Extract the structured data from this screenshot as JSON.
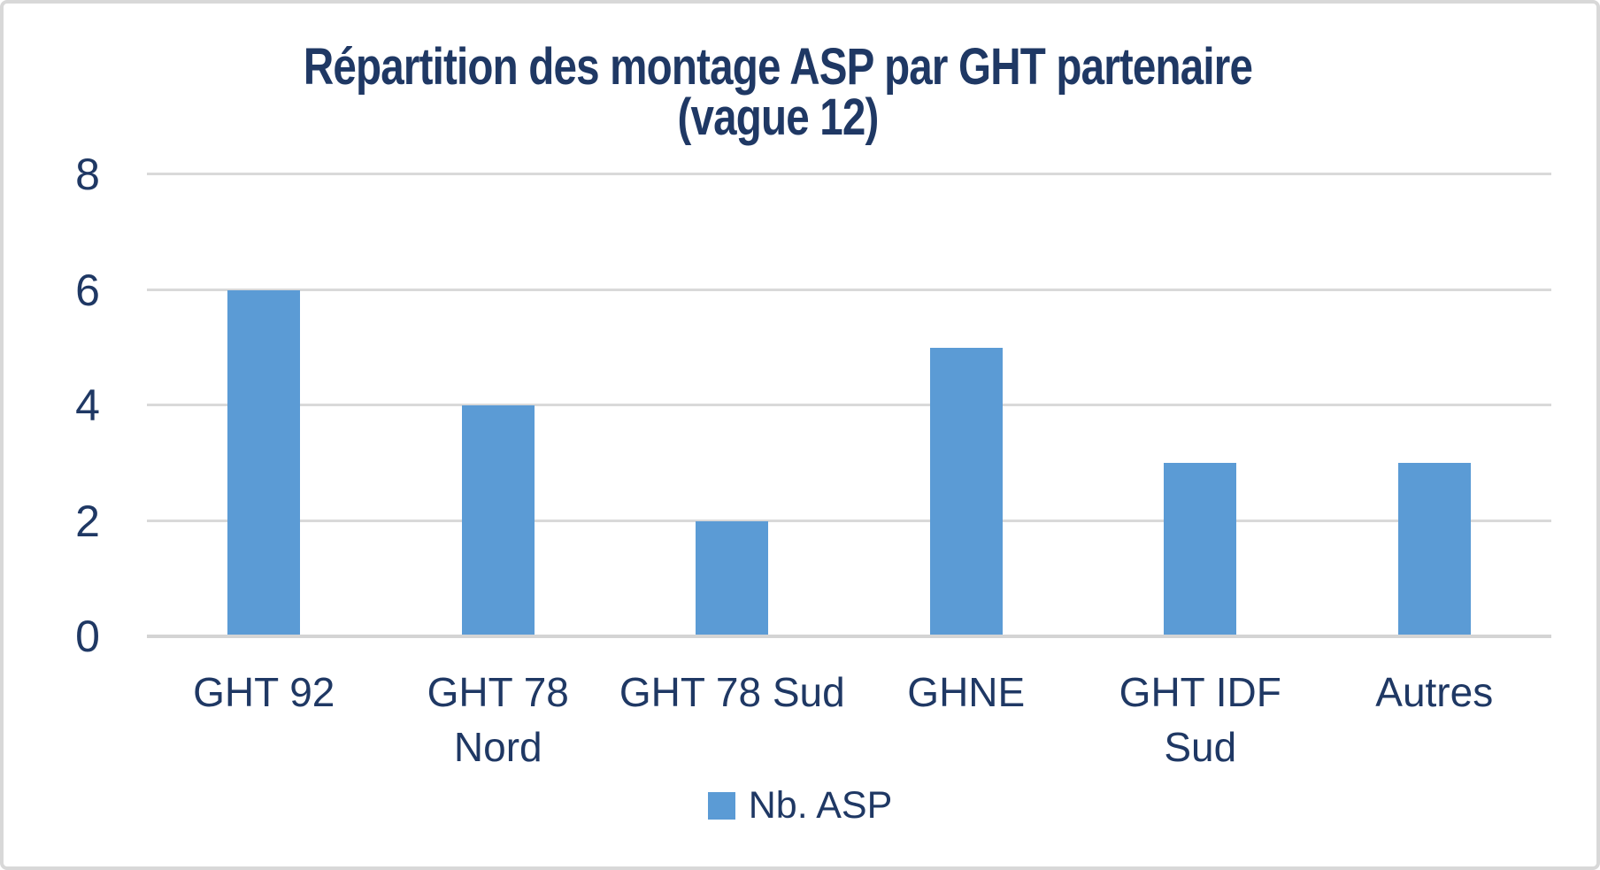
{
  "chart_data": {
    "type": "bar",
    "title": "Répartition des montage ASP par GHT partenaire (vague 12)",
    "title_lines": [
      "Répartition des montage ASP par GHT partenaire",
      "(vague 12)"
    ],
    "categories": [
      "GHT 92",
      "GHT 78 Nord",
      "GHT 78 Sud",
      "GHNE",
      "GHT IDF Sud",
      "Autres"
    ],
    "category_display_lines": [
      "GHT 92",
      "GHT 78\nNord",
      "GHT 78 Sud",
      "GHNE",
      "GHT IDF\nSud",
      "Autres"
    ],
    "values": [
      6,
      4,
      2,
      5,
      3,
      3
    ],
    "series_name": "Nb. ASP",
    "xlabel": "",
    "ylabel": "",
    "ylim": [
      0,
      8
    ],
    "yticks": [
      0,
      2,
      4,
      6,
      8
    ],
    "grid": true,
    "legend_position": "bottom-center",
    "colors": {
      "bar": "#5b9bd5",
      "text": "#1f3864",
      "gridline": "#d9d9d9",
      "frame_border": "#d8d8d8",
      "background": "#ffffff"
    }
  }
}
